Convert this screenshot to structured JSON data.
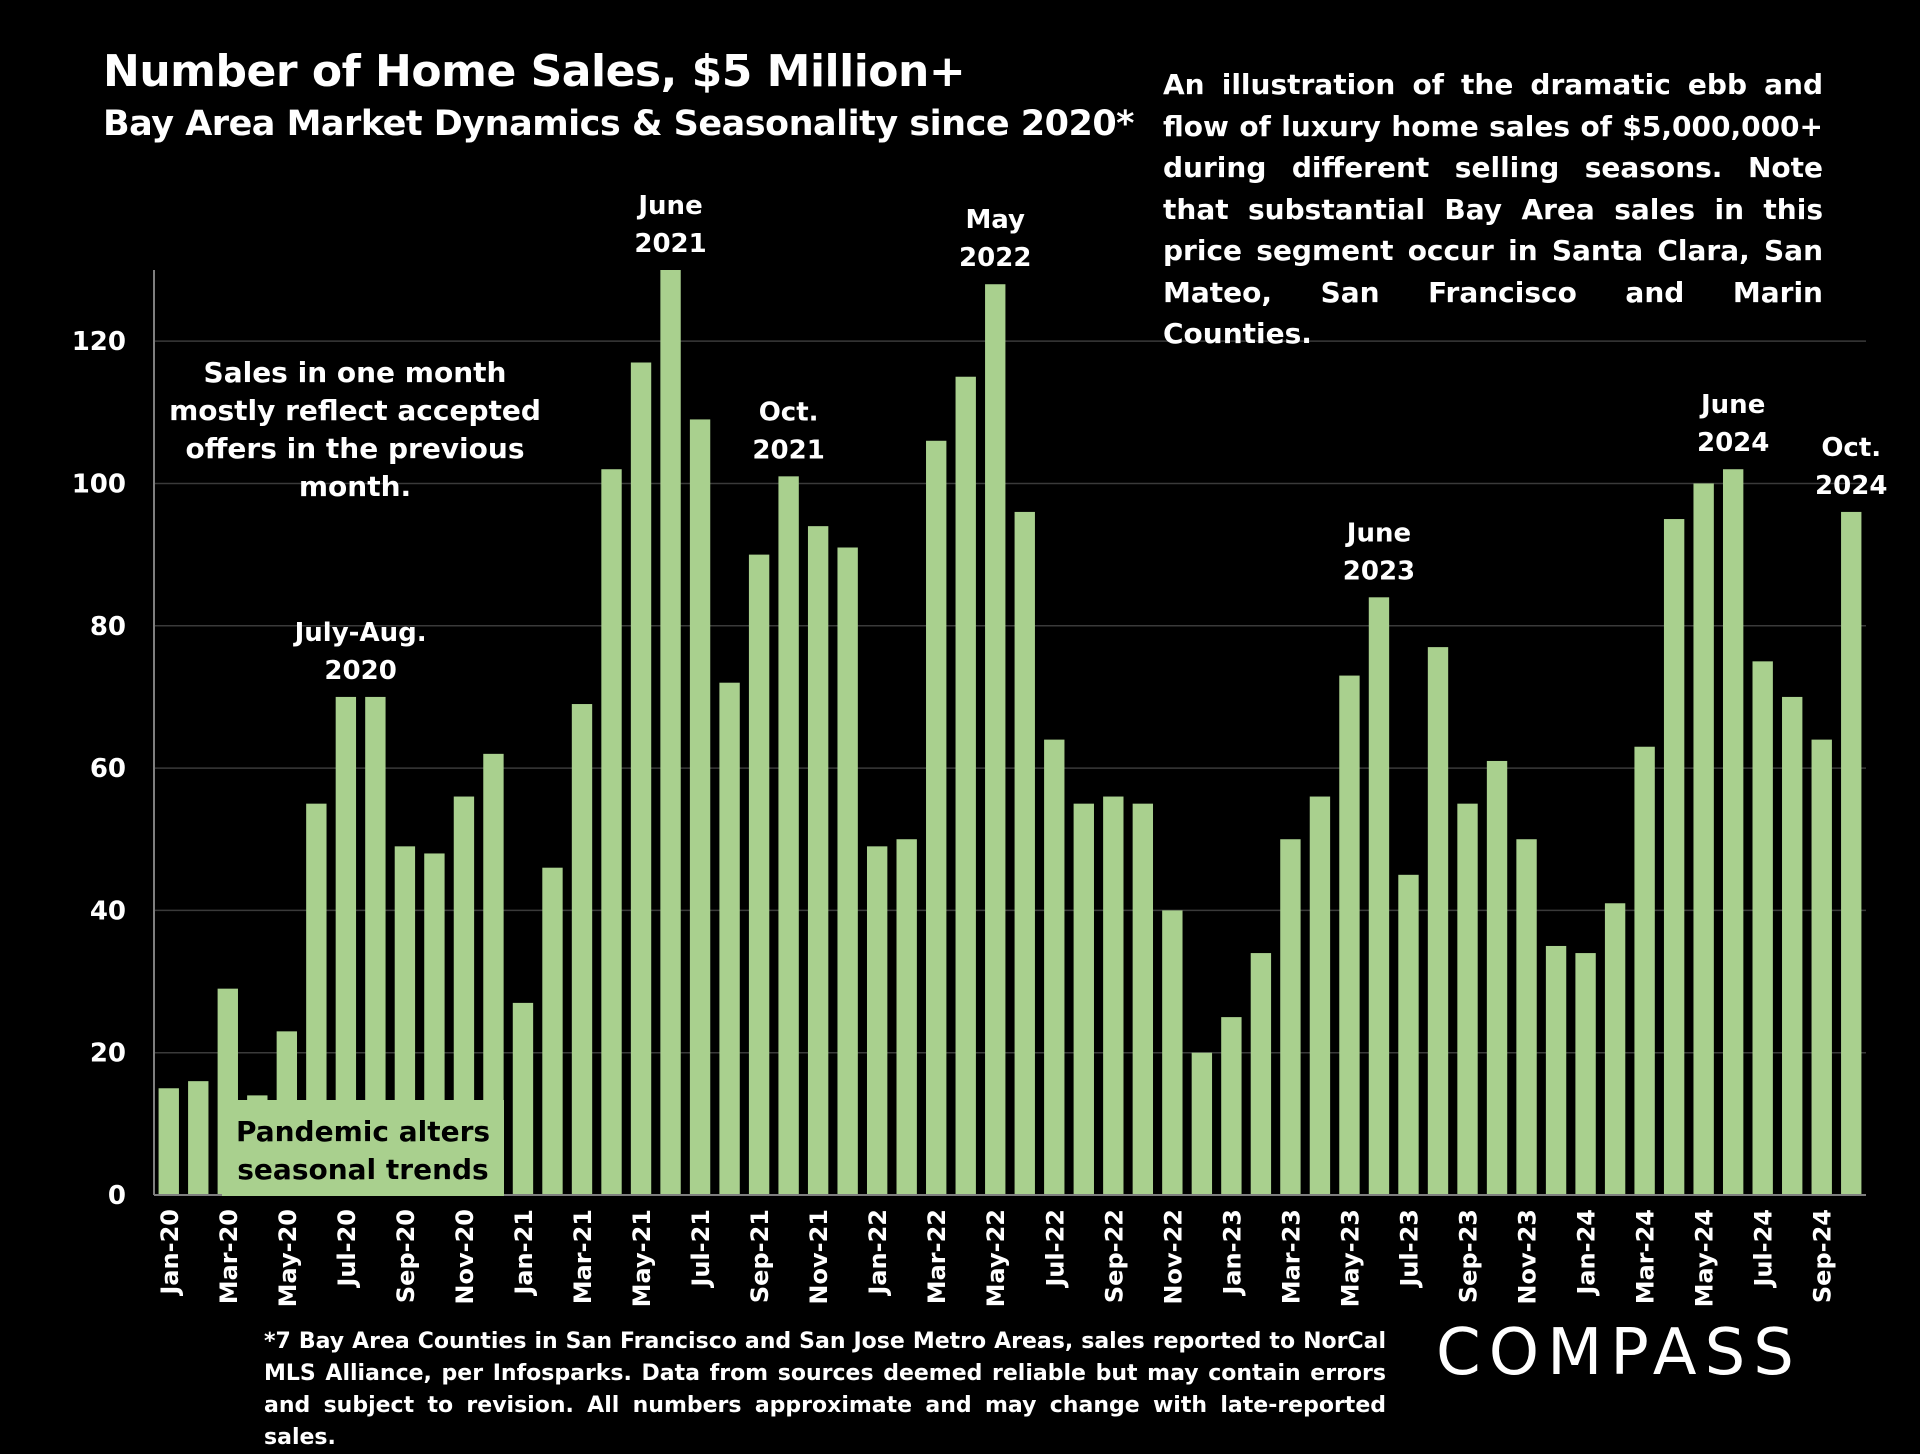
{
  "title": "Number of Home Sales, $5 Million+",
  "subtitle": "Bay Area Market Dynamics & Seasonality since 2020*",
  "description": "An illustration of the dramatic  ebb and flow of luxury home sales of $5,000,000+ during different selling seasons. Note that substantial Bay Area sales in this price segment occur in Santa Clara, San Mateo, San Francisco and Marin Counties.",
  "note": "Sales in one month mostly reflect accepted offers in the previous month.",
  "pandemic_box": "Pandemic alters seasonal trends",
  "footnote": "*7 Bay Area Counties in San Francisco and San Jose Metro Areas, sales reported to NorCal MLS Alliance, per Infosparks.  Data from sources deemed reliable but may contain errors and subject to revision. All numbers approximate and may change with late-reported sales.",
  "logo": "COMPASS",
  "colors": {
    "bar": "#a9d08e",
    "background": "#000000",
    "text": "#ffffff",
    "grid": "#3a3a3a"
  },
  "chart_data": {
    "type": "bar",
    "ylim": [
      0,
      130
    ],
    "yticks": [
      0,
      20,
      40,
      60,
      80,
      100,
      120
    ],
    "grid": true,
    "categories": [
      "Jan-20",
      "Feb-20",
      "Mar-20",
      "Apr-20",
      "May-20",
      "Jun-20",
      "Jul-20",
      "Aug-20",
      "Sep-20",
      "Oct-20",
      "Nov-20",
      "Dec-20",
      "Jan-21",
      "Feb-21",
      "Mar-21",
      "Apr-21",
      "May-21",
      "Jun-21",
      "Jul-21",
      "Aug-21",
      "Sep-21",
      "Oct-21",
      "Nov-21",
      "Dec-21",
      "Jan-22",
      "Feb-22",
      "Mar-22",
      "Apr-22",
      "May-22",
      "Jun-22",
      "Jul-22",
      "Aug-22",
      "Sep-22",
      "Oct-22",
      "Nov-22",
      "Dec-22",
      "Jan-23",
      "Feb-23",
      "Mar-23",
      "Apr-23",
      "May-23",
      "Jun-23",
      "Jul-23",
      "Aug-23",
      "Sep-23",
      "Oct-23",
      "Nov-23",
      "Dec-23",
      "Jan-24",
      "Feb-24",
      "Mar-24",
      "Apr-24",
      "May-24",
      "Jun-24",
      "Jul-24",
      "Aug-24",
      "Sep-24",
      "Oct-24"
    ],
    "xtick_labels": [
      "Jan-20",
      "Mar-20",
      "May-20",
      "Jul-20",
      "Sep-20",
      "Nov-20",
      "Jan-21",
      "Mar-21",
      "May-21",
      "Jul-21",
      "Sep-21",
      "Nov-21",
      "Jan-22",
      "Mar-22",
      "May-22",
      "Jul-22",
      "Sep-22",
      "Nov-22",
      "Jan-23",
      "Mar-23",
      "May-23",
      "Jul-23",
      "Sep-23",
      "Nov-23",
      "Jan-24",
      "Mar-24",
      "May-24",
      "Jul-24",
      "Sep-24"
    ],
    "values": [
      15,
      16,
      29,
      14,
      23,
      55,
      70,
      70,
      49,
      48,
      56,
      62,
      27,
      46,
      69,
      102,
      117,
      130,
      109,
      72,
      90,
      101,
      94,
      91,
      49,
      50,
      106,
      115,
      128,
      96,
      64,
      55,
      56,
      55,
      40,
      20,
      25,
      34,
      50,
      56,
      73,
      84,
      45,
      77,
      55,
      61,
      50,
      35,
      34,
      41,
      63,
      95,
      100,
      102,
      75,
      70,
      64,
      96
    ],
    "annotations": [
      {
        "category": "Jul-20",
        "lines": [
          "July-Aug.",
          "2020"
        ]
      },
      {
        "category": "Jun-21",
        "lines": [
          "June",
          "2021"
        ]
      },
      {
        "category": "Oct-21",
        "lines": [
          "Oct.",
          "2021"
        ]
      },
      {
        "category": "May-22",
        "lines": [
          "May",
          "2022"
        ]
      },
      {
        "category": "Jun-23",
        "lines": [
          "June",
          "2023"
        ]
      },
      {
        "category": "Jun-24",
        "lines": [
          "June",
          "2024"
        ]
      },
      {
        "category": "Oct-24",
        "lines": [
          "Oct.",
          "2024"
        ]
      }
    ]
  }
}
